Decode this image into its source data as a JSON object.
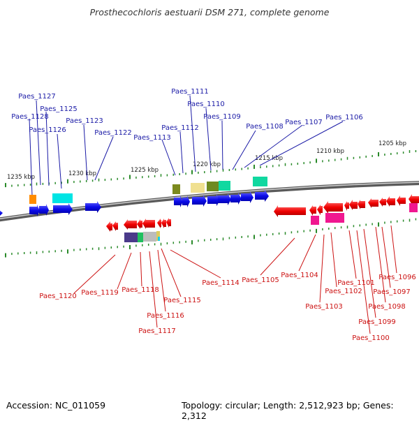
{
  "title": "Prosthecochloris aestuarii DSM 271, complete genome",
  "footer": {
    "accession": "Accession: NC_011059",
    "summary": "Topology: circular; Length: 2,512,923 bp; Genes: 2,312"
  },
  "scale_labels": [
    "1235 kbp",
    "1230 kbp",
    "1225 kbp",
    "1220 kbp",
    "1215 kbp",
    "1210 kbp",
    "1205 kbp"
  ],
  "top_genes": [
    "Paes_1127",
    "Paes_1128",
    "Paes_1125",
    "Paes_1126",
    "Paes_1123",
    "Paes_1122",
    "Paes_1113",
    "Paes_1112",
    "Paes_1111",
    "Paes_1110",
    "Paes_1109",
    "Paes_1108",
    "Paes_1107",
    "Paes_1106"
  ],
  "bottom_genes": [
    "Paes_1120",
    "Paes_1119",
    "Paes_1118",
    "Paes_1117",
    "Paes_1116",
    "Paes_1115",
    "Paes_1114",
    "Paes_1105",
    "Paes_1104",
    "Paes_1103",
    "Paes_1102",
    "Paes_1101",
    "Paes_1100",
    "Paes_1099",
    "Paes_1098",
    "Paes_1097",
    "Paes_1096"
  ],
  "colors": {
    "forward_strand": "#1010e0",
    "reverse_strand": "#e81010",
    "top_label": "#1a1aa6",
    "bottom_label": "#cc1111",
    "backbone": "#808080",
    "ticks": "#2a8a2a"
  }
}
